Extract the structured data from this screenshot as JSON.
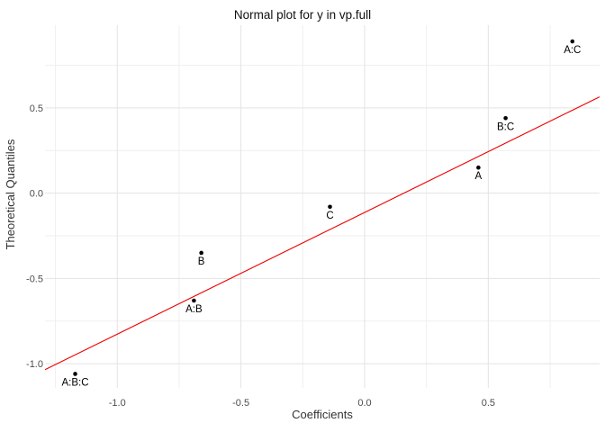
{
  "title": "Normal plot for y in vp.full",
  "chart_data": {
    "type": "scatter",
    "title": "Normal plot for y in vp.full",
    "xlabel": "Coefficients",
    "ylabel": "Theoretical Quantiles",
    "xlim": [
      -1.292,
      0.95
    ],
    "ylim": [
      -1.142,
      0.985
    ],
    "x_major_ticks": [
      -1.0,
      -0.5,
      0.0,
      0.5
    ],
    "x_tick_labels": [
      "-1.0",
      "-0.5",
      "0.0",
      "0.5"
    ],
    "x_minor_ticks": [
      -1.25,
      -0.75,
      -0.25,
      0.25,
      0.75
    ],
    "y_major_ticks": [
      0.5,
      0.0,
      -0.5,
      -1.0
    ],
    "y_tick_labels": [
      "0.5",
      "0.0",
      "-0.5",
      "-1.0"
    ],
    "y_minor_ticks": [
      0.75,
      0.25,
      -0.25,
      -0.75
    ],
    "grid": true,
    "legend": false,
    "points": [
      {
        "label": "A:C",
        "x": 0.84,
        "y": 0.89
      },
      {
        "label": "B:C",
        "x": 0.57,
        "y": 0.44
      },
      {
        "label": "A",
        "x": 0.46,
        "y": 0.15
      },
      {
        "label": "C",
        "x": -0.14,
        "y": -0.08
      },
      {
        "label": "B",
        "x": -0.66,
        "y": -0.35
      },
      {
        "label": "A:B",
        "x": -0.69,
        "y": -0.63
      },
      {
        "label": "A:B:C",
        "x": -1.17,
        "y": -1.06
      }
    ],
    "reference_line": {
      "x1": -1.292,
      "y1": -1.035,
      "x2": 0.95,
      "y2": 0.565
    },
    "colors": {
      "point": "#000000",
      "point_label": "#000000",
      "reference_line": "#ee0000",
      "grid_major": "#e3e3e3",
      "grid_minor": "#efefef",
      "tick_label": "#4d4d4d",
      "axis_title": "#333333",
      "title": "#111111",
      "background": "#ffffff"
    }
  }
}
